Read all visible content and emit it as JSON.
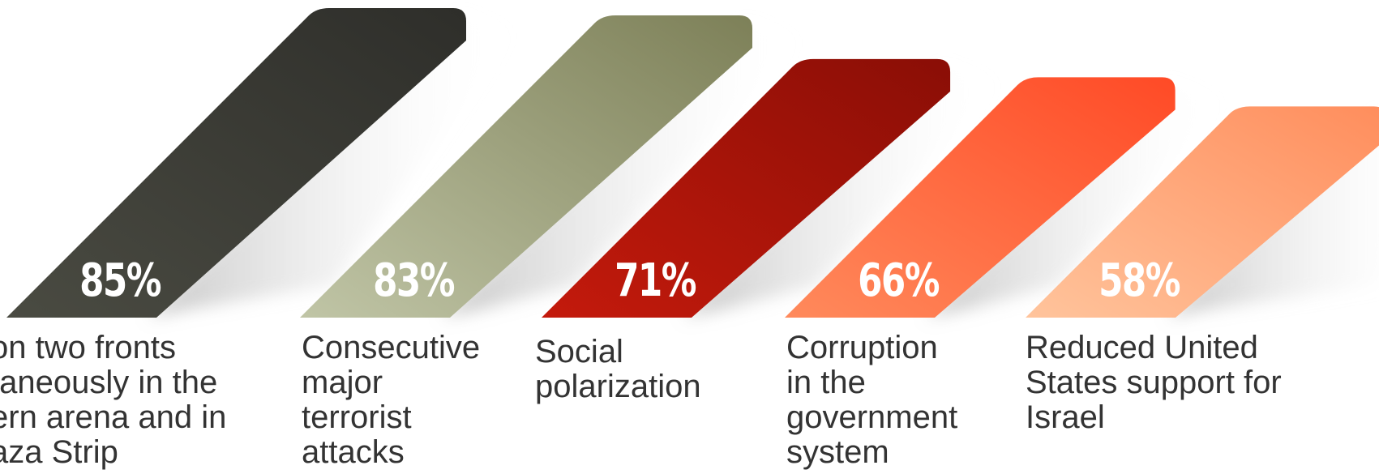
{
  "chart_data": {
    "type": "bar",
    "categories": [
      "on two fronts\ntaneously in the\nern arena and in\naza Strip",
      "Consecutive\nmajor\nterrorist\nattacks",
      "Social\npolarization",
      "Corruption\nin the\ngovernment\nsystem",
      "Reduced United\nStates support for\nIsrael"
    ],
    "values": [
      85,
      83,
      71,
      66,
      58
    ],
    "value_labels": [
      "85%",
      "83%",
      "71%",
      "66%",
      "58%"
    ],
    "value_unit": "%",
    "colors": [
      [
        "#4a4b42",
        "#2e2e2a"
      ],
      [
        "#c0c5a6",
        "#7d8058"
      ],
      [
        "#c41a0c",
        "#8a0e06"
      ],
      [
        "#ff8a5c",
        "#ff4a26"
      ],
      [
        "#ffc49c",
        "#ff8d5c"
      ]
    ],
    "grid": false,
    "legend": "none"
  }
}
